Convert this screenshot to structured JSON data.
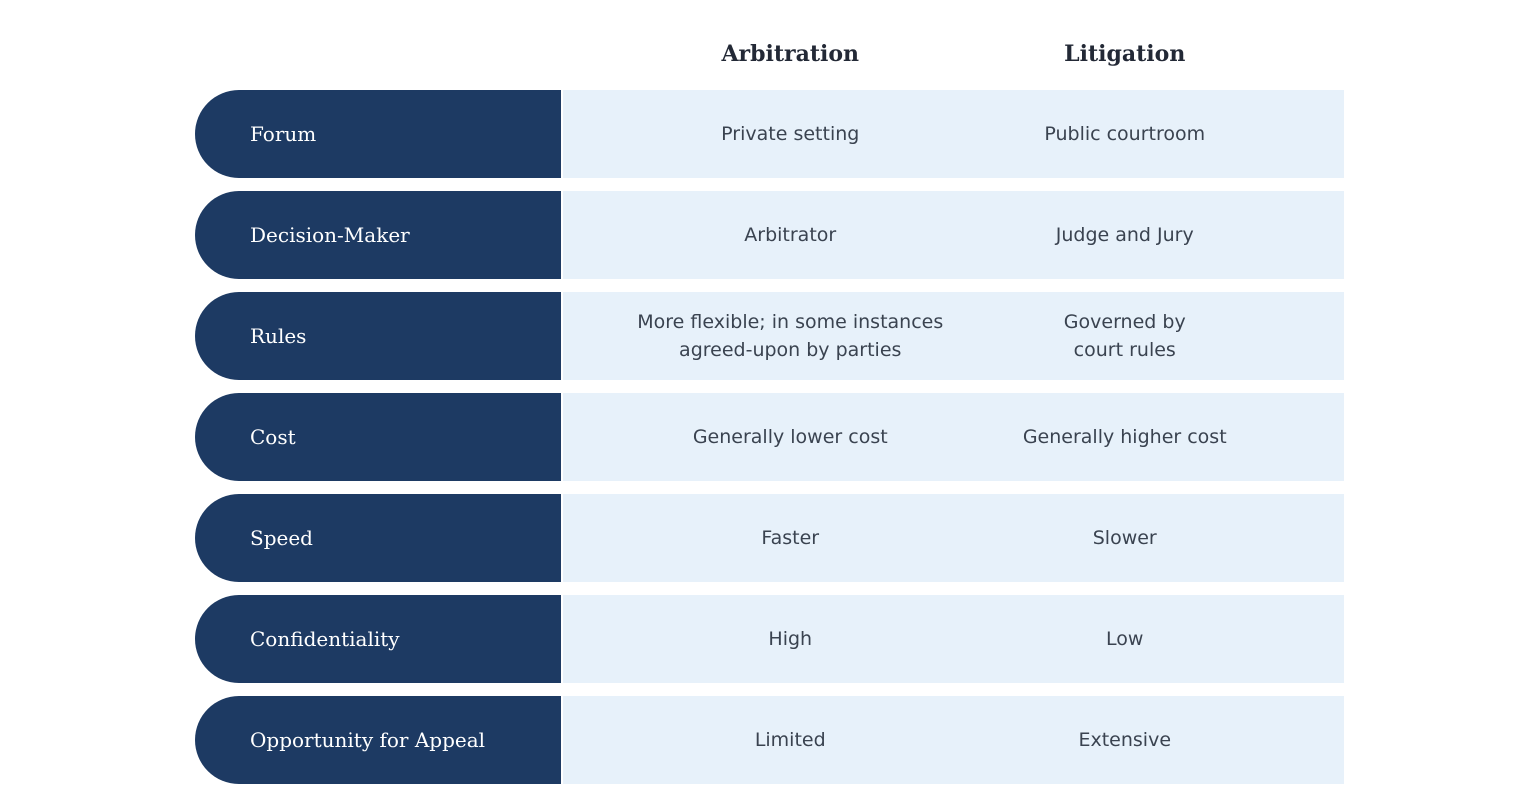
{
  "table": {
    "columns": [
      {
        "label": "Arbitration"
      },
      {
        "label": "Litigation"
      }
    ],
    "rows": [
      {
        "label": "Forum",
        "arbitration": "Private setting",
        "litigation": "Public courtroom"
      },
      {
        "label": "Decision-Maker",
        "arbitration": "Arbitrator",
        "litigation": "Judge and Jury"
      },
      {
        "label": "Rules",
        "arbitration": "More flexible; in some instances\nagreed-upon by parties",
        "litigation": "Governed by\ncourt rules"
      },
      {
        "label": "Cost",
        "arbitration": "Generally lower cost",
        "litigation": "Generally higher cost"
      },
      {
        "label": "Speed",
        "arbitration": "Faster",
        "litigation": "Slower"
      },
      {
        "label": "Confidentiality",
        "arbitration": "High",
        "litigation": "Low"
      },
      {
        "label": "Opportunity for Appeal",
        "arbitration": "Limited",
        "litigation": "Extensive"
      }
    ],
    "colors": {
      "row_label_bg": "#1d3a63",
      "cell_bg": "#e7f1fa",
      "row_label_text": "#ffffff",
      "cell_text": "#3a4350",
      "header_text": "#232936",
      "page_bg": "#ffffff"
    }
  },
  "chart_data": {
    "type": "table",
    "title": "",
    "columns": [
      "",
      "Arbitration",
      "Litigation"
    ],
    "rows": [
      [
        "Forum",
        "Private setting",
        "Public courtroom"
      ],
      [
        "Decision-Maker",
        "Arbitrator",
        "Judge and Jury"
      ],
      [
        "Rules",
        "More flexible; in some instances agreed-upon by parties",
        "Governed by court rules"
      ],
      [
        "Cost",
        "Generally lower cost",
        "Generally higher cost"
      ],
      [
        "Speed",
        "Faster",
        "Slower"
      ],
      [
        "Confidentiality",
        "High",
        "Low"
      ],
      [
        "Opportunity for Appeal",
        "Limited",
        "Extensive"
      ]
    ],
    "layout": "row labels as dark navy left-rounded pills; value cells on a continuous light-blue band; column headers bold serif centered above value columns"
  }
}
